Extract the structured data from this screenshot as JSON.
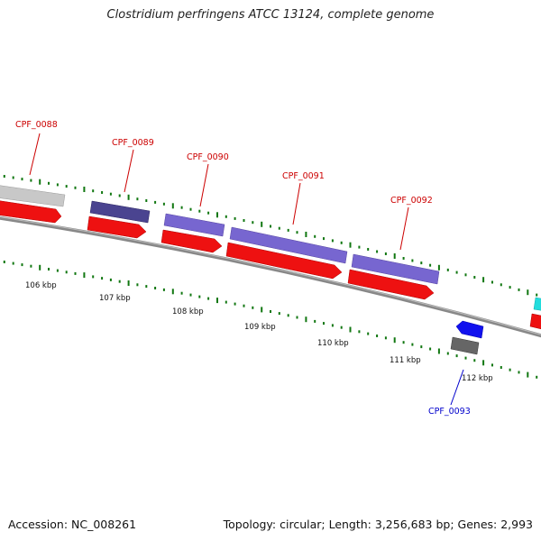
{
  "title": "Clostridium perfringens ATCC 13124, complete genome",
  "footer": {
    "accession": "Accession: NC_008261",
    "topology": "Topology: circular; Length: 3,256,683 bp; Genes: 2,993"
  },
  "colors": {
    "cds_forward": "#ee1111",
    "backbone": "#888888",
    "tick": "#117711",
    "label_red": "#cc0000",
    "label_blue": "#0000cc"
  },
  "genes": [
    {
      "id": "CPF_0088",
      "color": "#c8c8c8"
    },
    {
      "id": "CPF_0089",
      "color": "#4a4490"
    },
    {
      "id": "CPF_0090",
      "color": "#7766d0"
    },
    {
      "id": "CPF_0091",
      "color": "#7766d0"
    },
    {
      "id": "CPF_0092",
      "color": "#7766d0"
    },
    {
      "id": "CPF_0093",
      "color": "#666666",
      "reverse_cds": "#1111ee"
    }
  ],
  "kbp_ticks": [
    "106 kbp",
    "107 kbp",
    "108 kbp",
    "109 kbp",
    "110 kbp",
    "111 kbp",
    "112 kbp"
  ]
}
